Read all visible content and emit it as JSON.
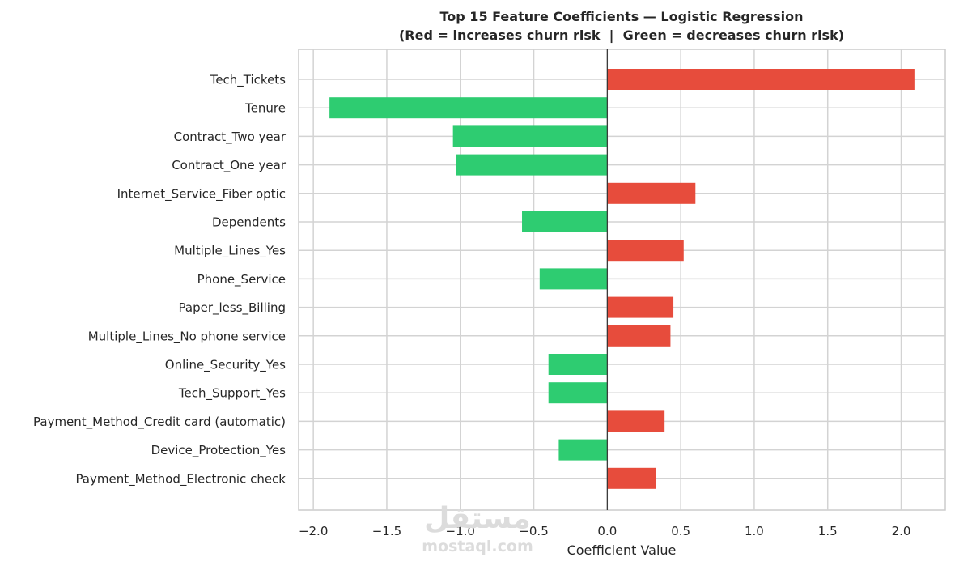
{
  "chart_data": {
    "type": "bar",
    "orientation": "horizontal",
    "title": "Top 15 Feature Coefficients — Logistic Regression",
    "subtitle": "(Red = increases churn risk  |  Green = decreases churn risk)",
    "xlabel": "Coefficient Value",
    "ylabel": "",
    "xlim": [
      -2.1,
      2.3
    ],
    "xticks": [
      -2.0,
      -1.5,
      -1.0,
      -0.5,
      0.0,
      0.5,
      1.0,
      1.5,
      2.0
    ],
    "xtick_labels": [
      "−2.0",
      "−1.5",
      "−1.0",
      "−0.5",
      "0.0",
      "0.5",
      "1.0",
      "1.5",
      "2.0"
    ],
    "grid": true,
    "zero_line": true,
    "categories": [
      "Tech_Tickets",
      "Tenure",
      "Contract_Two year",
      "Contract_One year",
      "Internet_Service_Fiber optic",
      "Dependents",
      "Multiple_Lines_Yes",
      "Phone_Service",
      "Paper_less_Billing",
      "Multiple_Lines_No phone service",
      "Online_Security_Yes",
      "Tech_Support_Yes",
      "Payment_Method_Credit card (automatic)",
      "Device_Protection_Yes",
      "Payment_Method_Electronic check"
    ],
    "values": [
      2.09,
      -1.89,
      -1.05,
      -1.03,
      0.6,
      -0.58,
      0.52,
      -0.46,
      0.45,
      0.43,
      -0.4,
      -0.4,
      0.39,
      -0.33,
      0.33
    ],
    "colors": {
      "positive": "#e74c3c",
      "negative": "#2ecc71",
      "zero_line": "#333333",
      "grid": "#d3d3d3",
      "frame": "#cccccc"
    }
  },
  "watermark": {
    "arabic": "مستقل",
    "latin": "mostaql.com"
  }
}
